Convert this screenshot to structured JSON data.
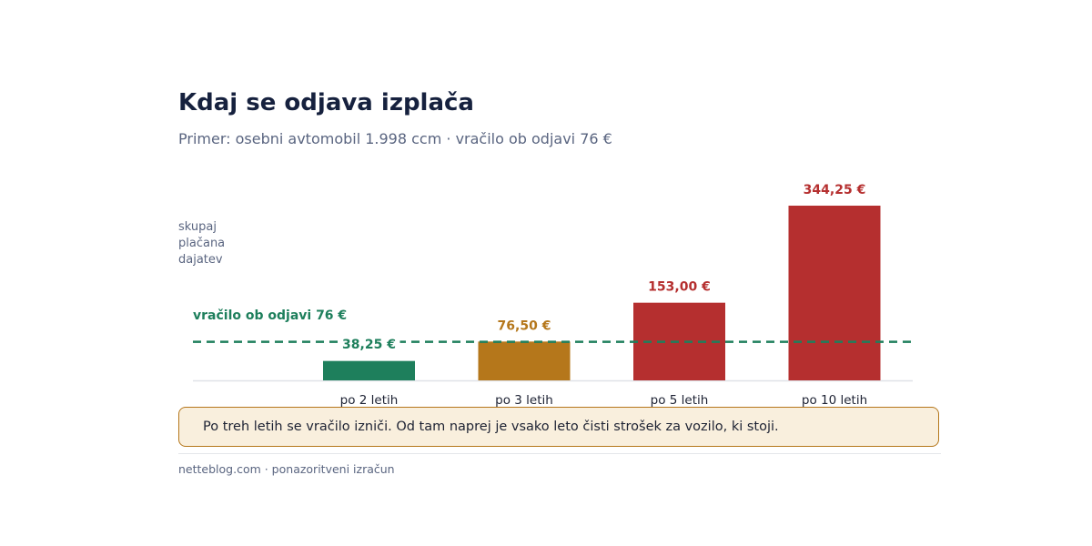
{
  "header": {
    "title": "Kdaj se odjava izplača",
    "subtitle": "Primer: osebni avtomobil 1.998 ccm  ·  vračilo ob odjavi 76 €"
  },
  "chart_data": {
    "type": "bar",
    "ylabel": [
      "skupaj",
      "plačana",
      "dajatev"
    ],
    "categories": [
      "po 2 letih",
      "po 3 letih",
      "po 5 letih",
      "po 10 letih"
    ],
    "values": [
      38.25,
      76.5,
      153.0,
      344.25
    ],
    "value_labels": [
      "38,25 €",
      "76,50 €",
      "153,00 €",
      "344,25 €"
    ],
    "bar_colors": [
      "#1e7f5c",
      "#b5771b",
      "#b52f2f",
      "#b52f2f"
    ],
    "reference_line": {
      "value": 76,
      "label": "vračilo ob odjavi  76 €",
      "color": "#1e7f5c",
      "style": "dashed"
    },
    "ylim": [
      0,
      344.25
    ],
    "grid": false
  },
  "callout": {
    "text": "Po treh letih se vračilo izniči. Od tam naprej je vsako leto čisti strošek za vozilo, ki stoji."
  },
  "footer": {
    "text": "netteblog.com  ·  ponazoritveni izračun"
  },
  "colors": {
    "title": "#16213e",
    "muted": "#5a6580",
    "green": "#1e7f5c",
    "amber": "#b5771b",
    "red": "#b52f2f",
    "callout_bg": "#f9efdd"
  }
}
